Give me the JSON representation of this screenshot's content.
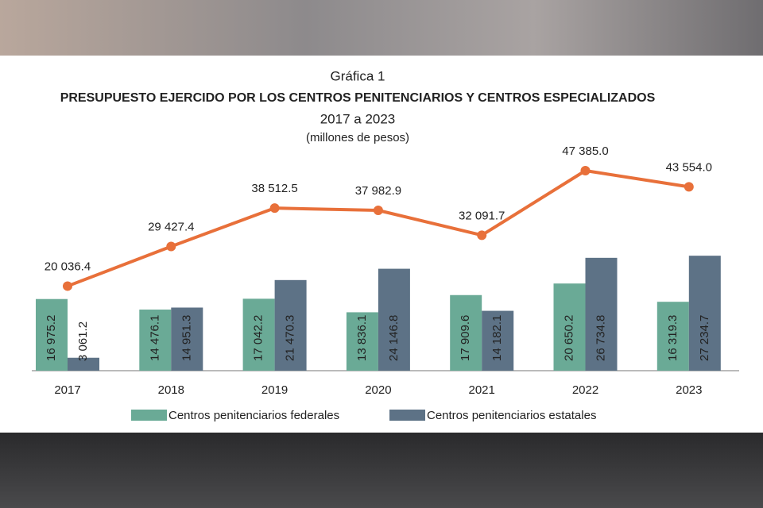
{
  "chart_data": {
    "type": "combo",
    "label": "Gráfica 1",
    "title": "PRESUPUESTO EJERCIDO POR LOS CENTROS PENITENCIARIOS Y CENTROS ESPECIALIZADOS",
    "subtitle": "2017 a 2023",
    "units": "(millones de pesos)",
    "categories": [
      "2017",
      "2018",
      "2019",
      "2020",
      "2021",
      "2022",
      "2023"
    ],
    "series": [
      {
        "name": "Centros penitenciarios federales",
        "color": "#6aaa96",
        "values": [
          16975.2,
          14476.1,
          17042.2,
          13836.1,
          17909.6,
          20650.2,
          16319.3
        ],
        "value_labels": [
          "16 975.2",
          "14 476.1",
          "17 042.2",
          "13 836.1",
          "17 909.6",
          "20 650.2",
          "16 319.3"
        ]
      },
      {
        "name": "Centros penitenciarios estatales",
        "color": "#5d7286",
        "values": [
          3061.2,
          14951.3,
          21470.3,
          24146.8,
          14182.1,
          26734.8,
          27234.7
        ],
        "value_labels": [
          "3 061.2",
          "14 951.3",
          "21 470.3",
          "24 146.8",
          "14 182.1",
          "26 734.8",
          "27 234.7"
        ]
      }
    ],
    "line": {
      "color": "#e8703a",
      "values": [
        20036.4,
        29427.4,
        38512.5,
        37982.9,
        32091.7,
        47385.0,
        43554.0
      ],
      "value_labels": [
        "20 036.4",
        "29 427.4",
        "38 512.5",
        "37 982.9",
        "32 091.7",
        "47 385.0",
        "43 554.0"
      ]
    }
  }
}
